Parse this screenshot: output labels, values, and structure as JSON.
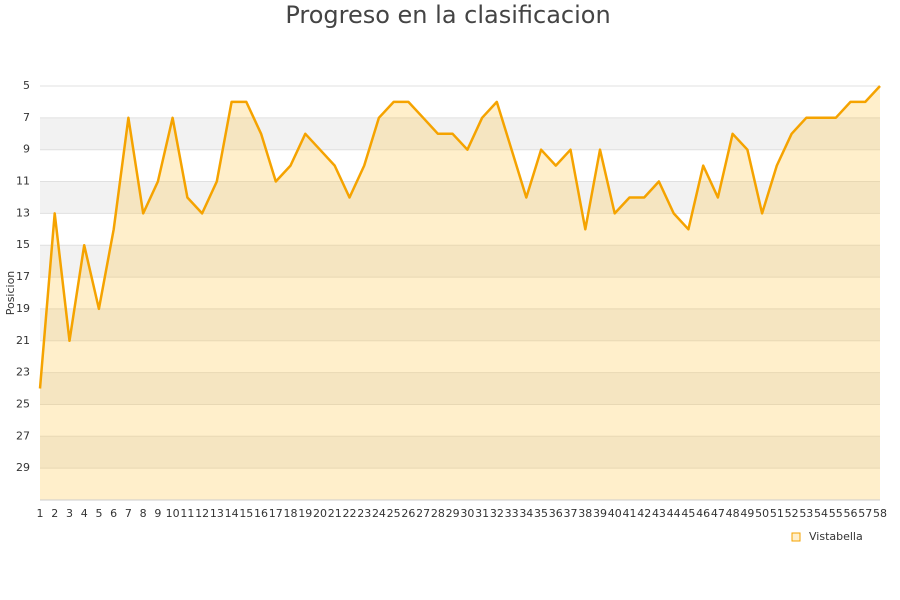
{
  "chart_data": {
    "type": "area",
    "title": "Progreso en la clasificacion",
    "y_label": "Posicion",
    "categories": [
      "1",
      "2",
      "3",
      "4",
      "5",
      "6",
      "7",
      "8",
      "9",
      "10",
      "11",
      "12",
      "13",
      "14",
      "15",
      "16",
      "17",
      "18",
      "19",
      "20",
      "21",
      "22",
      "23",
      "24",
      "25",
      "26",
      "27",
      "28",
      "29",
      "30",
      "31",
      "32",
      "33",
      "34",
      "35",
      "36",
      "37",
      "38",
      "39",
      "40",
      "41",
      "42",
      "43",
      "44",
      "45",
      "46",
      "47",
      "48",
      "49",
      "50",
      "51",
      "52",
      "53",
      "54",
      "55",
      "56",
      "57",
      "58"
    ],
    "series": [
      {
        "name": "Vistabella",
        "color": "#f5a300",
        "values": [
          24,
          13,
          21,
          15,
          19,
          14,
          7,
          13,
          11,
          7,
          12,
          13,
          11,
          6,
          6,
          8,
          11,
          10,
          8,
          9,
          10,
          12,
          10,
          7,
          6,
          6,
          7,
          8,
          8,
          9,
          7,
          6,
          9,
          12,
          9,
          10,
          9,
          14,
          9,
          13,
          12,
          12,
          11,
          13,
          14,
          10,
          12,
          8,
          9,
          13,
          10,
          8,
          7,
          7,
          7,
          6,
          6,
          5
        ]
      }
    ],
    "ylim": [
      5,
      31
    ],
    "y_inverted": true,
    "yticks": [
      5,
      7,
      9,
      11,
      13,
      15,
      17,
      19,
      21,
      23,
      25,
      27,
      29
    ],
    "grid": true,
    "legend": "bottom-right"
  }
}
